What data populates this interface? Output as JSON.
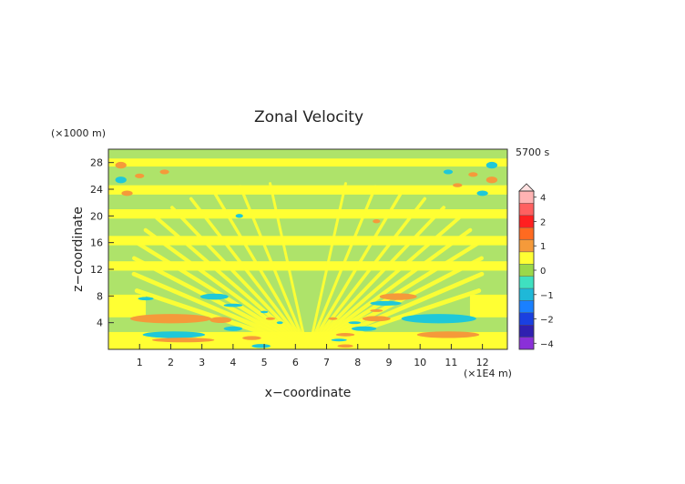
{
  "chart_data": {
    "type": "heatmap",
    "title": "Zonal Velocity",
    "xlabel": "x−coordinate",
    "ylabel": "z−coordinate",
    "x_unit": "(×1E4 m)",
    "y_unit": "(×1000 m)",
    "time_label": "5700 s",
    "xlim": [
      0,
      12.8
    ],
    "ylim": [
      0,
      30
    ],
    "x_ticks": [
      "1",
      "2",
      "3",
      "4",
      "5",
      "6",
      "7",
      "8",
      "9",
      "10",
      "11",
      "12"
    ],
    "y_ticks": [
      "4",
      "8",
      "12",
      "16",
      "20",
      "24",
      "28"
    ],
    "colorbar": {
      "tick_labels": [
        "4",
        "2",
        "1",
        "0",
        "−1",
        "−2",
        "−4"
      ],
      "levels": [
        {
          "value": 4,
          "color": "#ffb3b3"
        },
        {
          "value": 3,
          "color": "#ff6060"
        },
        {
          "value": 2,
          "color": "#ff2020"
        },
        {
          "value": 1.5,
          "color": "#ff6a20"
        },
        {
          "value": 1,
          "color": "#f59a3a"
        },
        {
          "value": 0.5,
          "color": "#ffff33"
        },
        {
          "value": 0,
          "color": "#9bd84a"
        },
        {
          "value": -0.5,
          "color": "#3fe0c0"
        },
        {
          "value": -1,
          "color": "#1fb8d8"
        },
        {
          "value": -1.5,
          "color": "#1a80ff"
        },
        {
          "value": -2,
          "color": "#1a40e0"
        },
        {
          "value": -3,
          "color": "#3020b0"
        },
        {
          "value": -4,
          "color": "#8a30d8"
        }
      ]
    },
    "colors": {
      "background_field": "#aee36a",
      "positive_weak": "#ffff33",
      "positive_strong": "#f59a3a",
      "negative": "#1fc8d8"
    }
  }
}
